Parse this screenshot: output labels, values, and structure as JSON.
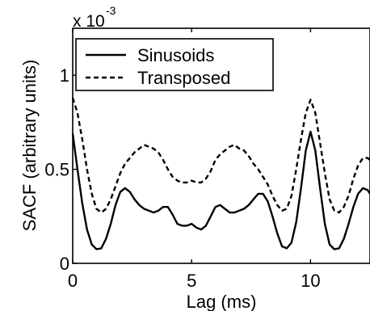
{
  "chart_data": {
    "type": "line",
    "xlabel": "Lag (ms)",
    "ylabel": "SACF (arbitrary units)",
    "scale_label": "x 10",
    "scale_exponent": "-3",
    "xlim": [
      0,
      12.5
    ],
    "ylim": [
      0,
      1.25
    ],
    "xticks": [
      0,
      5,
      10
    ],
    "xtick_labels": [
      "0",
      "5",
      "10"
    ],
    "yticks": [
      0,
      0.5,
      1
    ],
    "ytick_labels": [
      "0",
      "0.5",
      "1"
    ],
    "grid": false,
    "legend_position": "top-left",
    "series": [
      {
        "name": "Sinusoids",
        "style": "solid",
        "color": "#000000",
        "points": [
          [
            0,
            0.69
          ],
          [
            0.2,
            0.5
          ],
          [
            0.4,
            0.32
          ],
          [
            0.6,
            0.18
          ],
          [
            0.8,
            0.1
          ],
          [
            1.0,
            0.075
          ],
          [
            1.2,
            0.08
          ],
          [
            1.4,
            0.13
          ],
          [
            1.6,
            0.21
          ],
          [
            1.8,
            0.31
          ],
          [
            2.0,
            0.38
          ],
          [
            2.2,
            0.4
          ],
          [
            2.4,
            0.38
          ],
          [
            2.6,
            0.34
          ],
          [
            2.8,
            0.31
          ],
          [
            3.0,
            0.29
          ],
          [
            3.2,
            0.28
          ],
          [
            3.4,
            0.27
          ],
          [
            3.6,
            0.28
          ],
          [
            3.8,
            0.3
          ],
          [
            4.0,
            0.3
          ],
          [
            4.2,
            0.26
          ],
          [
            4.4,
            0.21
          ],
          [
            4.6,
            0.2
          ],
          [
            4.8,
            0.2
          ],
          [
            5.0,
            0.21
          ],
          [
            5.2,
            0.19
          ],
          [
            5.4,
            0.18
          ],
          [
            5.6,
            0.2
          ],
          [
            5.8,
            0.25
          ],
          [
            6.0,
            0.3
          ],
          [
            6.2,
            0.31
          ],
          [
            6.4,
            0.29
          ],
          [
            6.6,
            0.27
          ],
          [
            6.8,
            0.27
          ],
          [
            7.0,
            0.28
          ],
          [
            7.2,
            0.29
          ],
          [
            7.4,
            0.31
          ],
          [
            7.6,
            0.34
          ],
          [
            7.8,
            0.37
          ],
          [
            8.0,
            0.37
          ],
          [
            8.2,
            0.33
          ],
          [
            8.4,
            0.25
          ],
          [
            8.6,
            0.16
          ],
          [
            8.8,
            0.09
          ],
          [
            9.0,
            0.08
          ],
          [
            9.2,
            0.11
          ],
          [
            9.4,
            0.22
          ],
          [
            9.6,
            0.4
          ],
          [
            9.8,
            0.6
          ],
          [
            10.0,
            0.7
          ],
          [
            10.2,
            0.6
          ],
          [
            10.4,
            0.4
          ],
          [
            10.6,
            0.21
          ],
          [
            10.8,
            0.1
          ],
          [
            11.0,
            0.075
          ],
          [
            11.2,
            0.08
          ],
          [
            11.4,
            0.13
          ],
          [
            11.6,
            0.21
          ],
          [
            11.8,
            0.3
          ],
          [
            12.0,
            0.37
          ],
          [
            12.2,
            0.4
          ],
          [
            12.4,
            0.39
          ],
          [
            12.5,
            0.37
          ]
        ]
      },
      {
        "name": "Transposed",
        "style": "dashed",
        "color": "#000000",
        "points": [
          [
            0,
            0.88
          ],
          [
            0.2,
            0.8
          ],
          [
            0.4,
            0.66
          ],
          [
            0.6,
            0.5
          ],
          [
            0.8,
            0.37
          ],
          [
            1.0,
            0.29
          ],
          [
            1.2,
            0.27
          ],
          [
            1.4,
            0.29
          ],
          [
            1.6,
            0.34
          ],
          [
            1.8,
            0.41
          ],
          [
            2.0,
            0.48
          ],
          [
            2.2,
            0.53
          ],
          [
            2.4,
            0.56
          ],
          [
            2.6,
            0.59
          ],
          [
            2.8,
            0.61
          ],
          [
            3.0,
            0.63
          ],
          [
            3.2,
            0.62
          ],
          [
            3.4,
            0.61
          ],
          [
            3.6,
            0.59
          ],
          [
            3.8,
            0.55
          ],
          [
            4.0,
            0.5
          ],
          [
            4.2,
            0.46
          ],
          [
            4.4,
            0.44
          ],
          [
            4.6,
            0.43
          ],
          [
            4.8,
            0.43
          ],
          [
            5.0,
            0.44
          ],
          [
            5.2,
            0.43
          ],
          [
            5.4,
            0.43
          ],
          [
            5.6,
            0.45
          ],
          [
            5.8,
            0.49
          ],
          [
            6.0,
            0.55
          ],
          [
            6.2,
            0.58
          ],
          [
            6.4,
            0.6
          ],
          [
            6.6,
            0.62
          ],
          [
            6.8,
            0.63
          ],
          [
            7.0,
            0.61
          ],
          [
            7.2,
            0.6
          ],
          [
            7.4,
            0.57
          ],
          [
            7.6,
            0.53
          ],
          [
            7.8,
            0.5
          ],
          [
            8.0,
            0.46
          ],
          [
            8.2,
            0.42
          ],
          [
            8.4,
            0.36
          ],
          [
            8.6,
            0.31
          ],
          [
            8.8,
            0.28
          ],
          [
            9.0,
            0.29
          ],
          [
            9.2,
            0.36
          ],
          [
            9.4,
            0.5
          ],
          [
            9.6,
            0.66
          ],
          [
            9.8,
            0.8
          ],
          [
            10.0,
            0.87
          ],
          [
            10.2,
            0.8
          ],
          [
            10.4,
            0.64
          ],
          [
            10.6,
            0.48
          ],
          [
            10.8,
            0.34
          ],
          [
            11.0,
            0.28
          ],
          [
            11.2,
            0.27
          ],
          [
            11.4,
            0.3
          ],
          [
            11.6,
            0.36
          ],
          [
            11.8,
            0.45
          ],
          [
            12.0,
            0.52
          ],
          [
            12.2,
            0.56
          ],
          [
            12.4,
            0.56
          ],
          [
            12.5,
            0.55
          ]
        ]
      }
    ]
  }
}
